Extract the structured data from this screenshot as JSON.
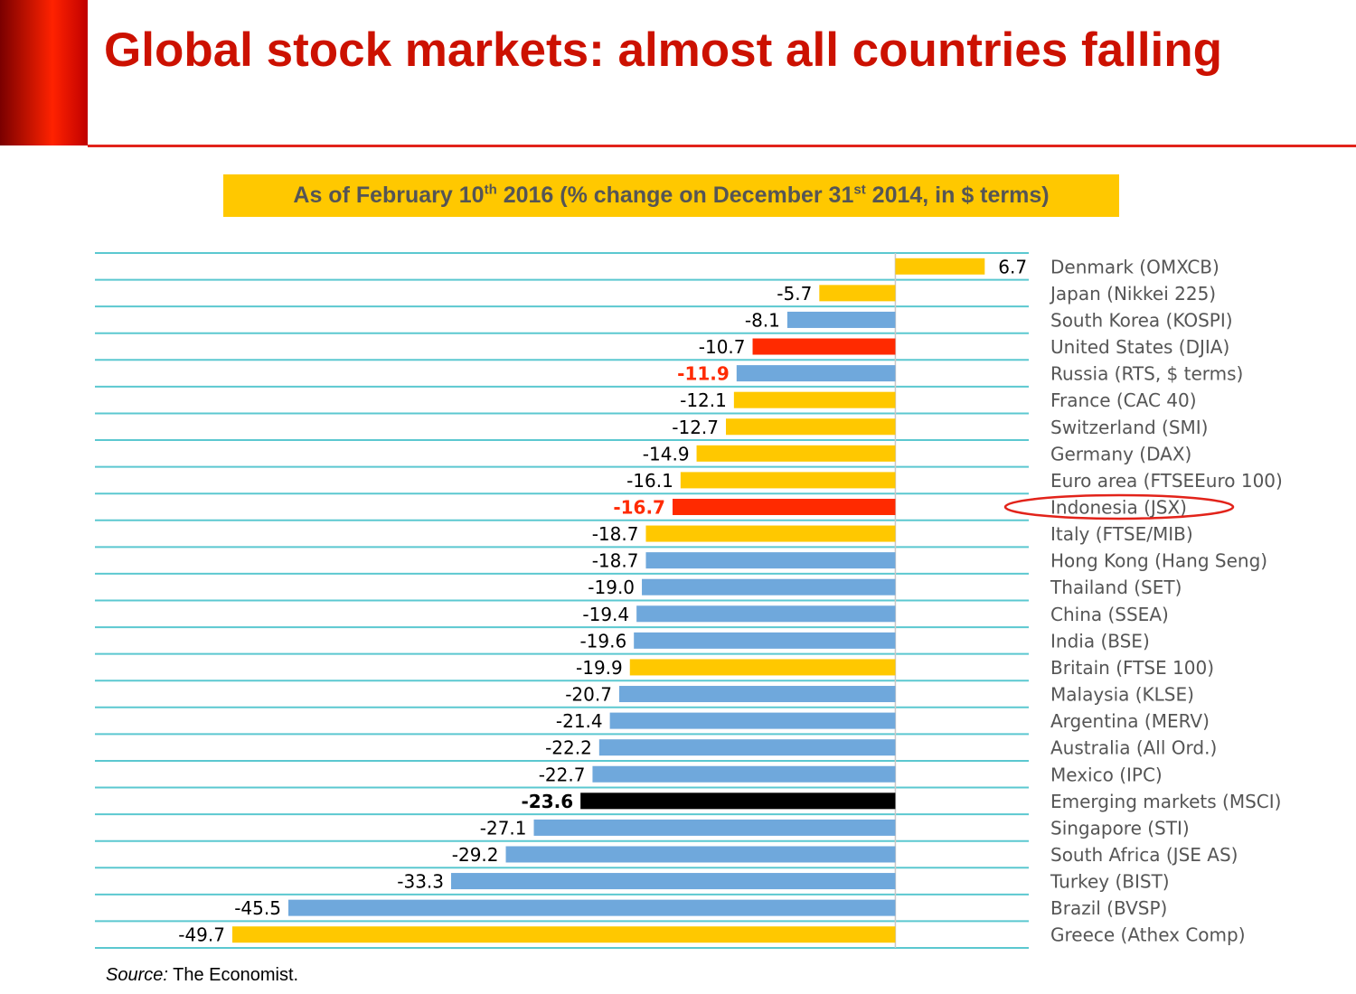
{
  "chart_data": {
    "type": "bar",
    "orientation": "horizontal",
    "title": "Global stock markets: almost all countries falling",
    "subtitle": [
      "As of February 10",
      "th",
      " 2016 (% change on December 31",
      "st",
      " 2014, in $ terms)"
    ],
    "source": [
      "Source:",
      " The Economist."
    ],
    "categories": [
      "Denmark (OMXCB)",
      "Japan (Nikkei 225)",
      "South Korea (KOSPI)",
      "United States (DJIA)",
      "Russia (RTS, $ terms)",
      "France (CAC 40)",
      "Switzerland (SMI)",
      "Germany (DAX)",
      "Euro area (FTSEEuro 100)",
      "Indonesia (JSX)",
      "Italy (FTSE/MIB)",
      "Hong Kong (Hang Seng)",
      "Thailand (SET)",
      "China (SSEA)",
      "India (BSE)",
      "Britain (FTSE 100)",
      "Malaysia (KLSE)",
      "Argentina (MERV)",
      "Australia (All Ord.)",
      "Mexico (IPC)",
      "Emerging markets (MSCI)",
      "Singapore (STI)",
      "South Africa (JSE AS)",
      "Turkey (BIST)",
      "Brazil (BVSP)",
      "Greece (Athex Comp)"
    ],
    "values": [
      6.7,
      -5.7,
      -8.1,
      -10.7,
      -11.9,
      -12.1,
      -12.7,
      -14.9,
      -16.1,
      -16.7,
      -18.7,
      -18.7,
      -19,
      -19.4,
      -19.6,
      -19.9,
      -20.7,
      -21.4,
      -22.2,
      -22.7,
      -23.6,
      -27.1,
      -29.2,
      -33.3,
      -45.5,
      -49.7
    ],
    "value_labels": [
      "6.7",
      "-5.7",
      "-8.1",
      "-10.7",
      "-11.9",
      "-12.1",
      "-12.7",
      "-14.9",
      "-16.1",
      "-16.7",
      "-18.7",
      "-18.7",
      "-19.0",
      "-19.4",
      "-19.6",
      "-19.9",
      "-20.7",
      "-21.4",
      "-22.2",
      "-22.7",
      "-23.6",
      "-27.1",
      "-29.2",
      "-33.3",
      "-45.5",
      "-49.7"
    ],
    "colors": [
      "#ffc800",
      "#ffc800",
      "#6fa8dc",
      "#ff2a00",
      "#6fa8dc",
      "#ffc800",
      "#ffc800",
      "#ffc800",
      "#ffc800",
      "#ff2a00",
      "#ffc800",
      "#6fa8dc",
      "#6fa8dc",
      "#6fa8dc",
      "#6fa8dc",
      "#ffc800",
      "#6fa8dc",
      "#6fa8dc",
      "#6fa8dc",
      "#6fa8dc",
      "#000000",
      "#6fa8dc",
      "#6fa8dc",
      "#6fa8dc",
      "#6fa8dc",
      "#ffc800"
    ],
    "label_colors": [
      "#000000",
      "#000000",
      "#000000",
      "#000000",
      "#ff2a00",
      "#000000",
      "#000000",
      "#000000",
      "#000000",
      "#ff2a00",
      "#000000",
      "#000000",
      "#000000",
      "#000000",
      "#000000",
      "#000000",
      "#000000",
      "#000000",
      "#000000",
      "#000000",
      "#000000",
      "#000000",
      "#000000",
      "#000000",
      "#000000",
      "#000000"
    ],
    "label_weights": [
      "normal",
      "normal",
      "normal",
      "normal",
      "bold",
      "normal",
      "normal",
      "normal",
      "normal",
      "bold",
      "normal",
      "normal",
      "normal",
      "normal",
      "normal",
      "normal",
      "normal",
      "normal",
      "normal",
      "normal",
      "bold",
      "normal",
      "normal",
      "normal",
      "normal",
      "normal"
    ],
    "circled_category": 9,
    "xlim": [
      -60,
      10
    ],
    "grid": true,
    "grid_color": "#5bc8d0"
  }
}
